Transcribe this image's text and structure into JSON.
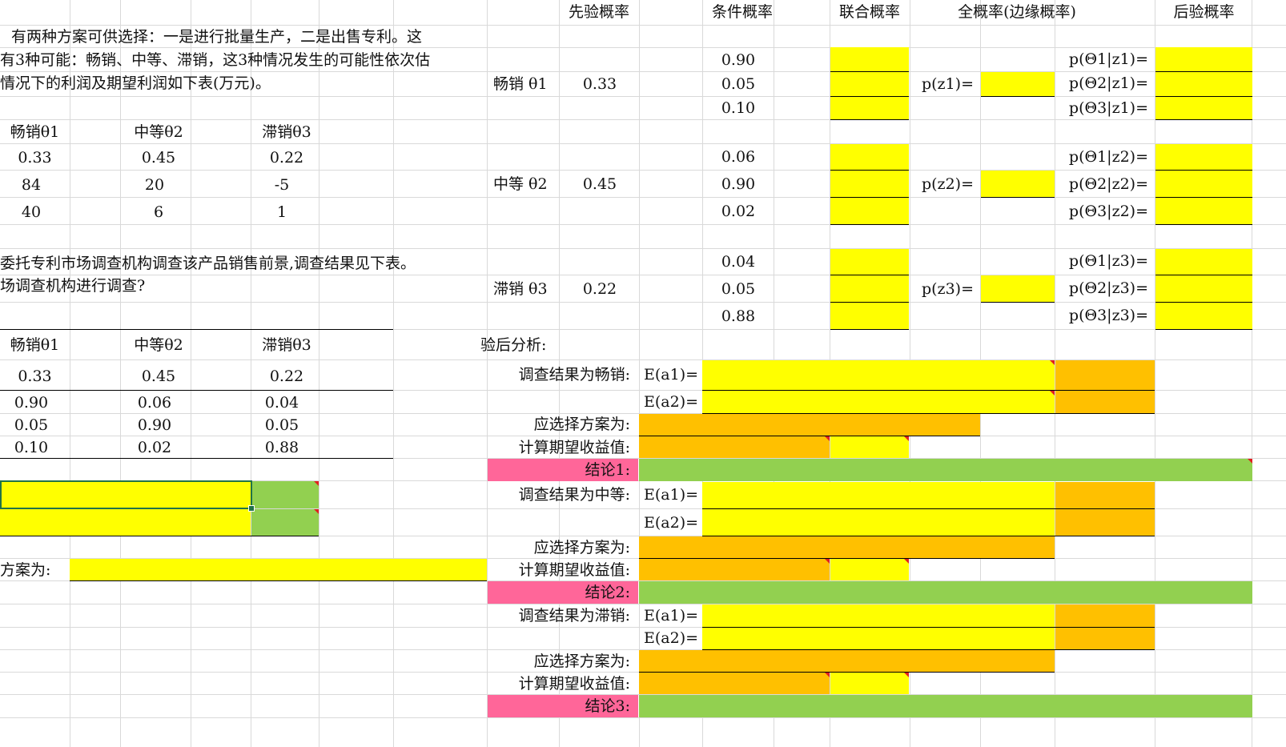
{
  "intro": {
    "line1": "有两种方案可供选择：一是进行批量生产，二是出售专利。这",
    "line2": "有3种可能：畅销、中等、滞销，这3种情况发生的可能性依次估",
    "line3": "情况下的利润及期望利润如下表(万元)。"
  },
  "payoff_table": {
    "headers": [
      "畅销θ1",
      "中等θ2",
      "滞销θ3"
    ],
    "prob_row": [
      "0.33",
      "0.45",
      "0.22"
    ],
    "row_a1": [
      "84",
      "20",
      "-5"
    ],
    "row_a2": [
      "40",
      "6",
      "1"
    ]
  },
  "survey_text": {
    "line1": "委托专利市场调查机构调查该产品销售前景,调查结果见下表。",
    "line2": "场调查机构进行调查?"
  },
  "survey_table": {
    "headers": [
      "畅销θ1",
      "中等θ2",
      "滞销θ3"
    ],
    "prior_row": [
      "0.33",
      "0.45",
      "0.22"
    ],
    "rows": [
      [
        "0.90",
        "0.06",
        "0.04"
      ],
      [
        "0.05",
        "0.90",
        "0.05"
      ],
      [
        "0.10",
        "0.02",
        "0.88"
      ]
    ]
  },
  "left_bottom": {
    "choose_label": "方案为:"
  },
  "bayes_headers": {
    "prior": "先验概率",
    "conditional": "条件概率",
    "joint": "联合概率",
    "marginal": "全概率(边缘概率)",
    "posterior": "后验概率"
  },
  "states": [
    {
      "label": "畅销 θ1",
      "prior": "0.33",
      "cond": [
        "0.90",
        "0.05",
        "0.10"
      ],
      "marginal_label": "p(z1)=",
      "posterior_labels": [
        "p(Θ1|z1)=",
        "p(Θ2|z1)=",
        "p(Θ3|z1)="
      ]
    },
    {
      "label": "中等 θ2",
      "prior": "0.45",
      "cond": [
        "0.06",
        "0.90",
        "0.02"
      ],
      "marginal_label": "p(z2)=",
      "posterior_labels": [
        "p(Θ1|z2)=",
        "p(Θ2|z2)=",
        "p(Θ3|z2)="
      ]
    },
    {
      "label": "滞销 θ3",
      "prior": "0.22",
      "cond": [
        "0.04",
        "0.05",
        "0.88"
      ],
      "marginal_label": "p(z3)=",
      "posterior_labels": [
        "p(Θ1|z3)=",
        "p(Θ2|z3)=",
        "p(Θ3|z3)="
      ]
    }
  ],
  "analysis": {
    "title": "验后分析:",
    "blocks": [
      {
        "result_label": "调查结果为畅销:",
        "ea1": "E(a1)=",
        "ea2": "E(a2)=",
        "choose": "应选择方案为:",
        "expected": "计算期望收益值:",
        "conclusion": "结论1:"
      },
      {
        "result_label": "调查结果为中等:",
        "ea1": "E(a1)=",
        "ea2": "E(a2)=",
        "choose": "应选择方案为:",
        "expected": "计算期望收益值:",
        "conclusion": "结论2:"
      },
      {
        "result_label": "调查结果为滞销:",
        "ea1": "E(a1)=",
        "ea2": "E(a2)=",
        "choose": "应选择方案为:",
        "expected": "计算期望收益值:",
        "conclusion": "结论3:"
      }
    ]
  },
  "colors": {
    "input_yellow": "#ffff00",
    "result_orange": "#ffc000",
    "conclusion_green": "#92d050",
    "label_pink": "#ff6699",
    "gridline": "#d9d9d9",
    "comment_marker": "#e02020",
    "selection_green": "#217346"
  }
}
